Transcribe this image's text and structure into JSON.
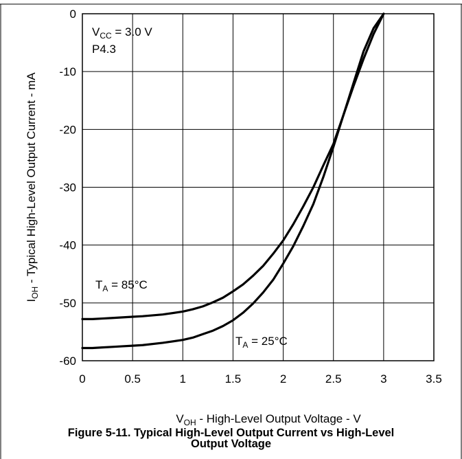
{
  "chart_data": {
    "type": "line",
    "xlabel": "V<sub>OH</sub> - High-Level Output Voltage - V",
    "ylabel": "I<sub>OH</sub> - Typical High-Level Output Current - mA",
    "xlim": [
      0,
      3.5
    ],
    "ylim": [
      -60,
      0
    ],
    "xticks": [
      0,
      0.5,
      1,
      1.5,
      2,
      2.5,
      3,
      3.5
    ],
    "xtick_labels": [
      "0",
      "0.5",
      "1",
      "1.5",
      "2",
      "2.5",
      "3",
      "3.5"
    ],
    "yticks": [
      0,
      -10,
      -20,
      -30,
      -40,
      -50,
      -60
    ],
    "ytick_labels": [
      "0",
      "-10",
      "-20",
      "-30",
      "-40",
      "-50",
      "-60"
    ],
    "grid": true,
    "annotations": [
      {
        "id": "vcc",
        "main": "V",
        "sub": "CC",
        "rest": " = 3.0 V"
      },
      {
        "id": "port",
        "main": "P4.3",
        "sub": "",
        "rest": ""
      },
      {
        "id": "ta85",
        "main": "T",
        "sub": "A",
        "rest": " = 85°C"
      },
      {
        "id": "ta25",
        "main": "T",
        "sub": "A",
        "rest": " = 25°C"
      }
    ],
    "series": [
      {
        "name": "T_A = 85°C",
        "color": "#000000",
        "x": [
          0,
          0.1,
          0.2,
          0.3,
          0.4,
          0.5,
          0.6,
          0.8,
          1.0,
          1.1,
          1.2,
          1.3,
          1.4,
          1.5,
          1.6,
          1.7,
          1.8,
          1.9,
          2.0,
          2.1,
          2.2,
          2.3,
          2.4,
          2.5,
          2.6,
          2.7,
          2.8,
          2.9,
          3.0
        ],
        "y": [
          -52.8,
          -52.8,
          -52.7,
          -52.6,
          -52.5,
          -52.4,
          -52.3,
          -52.0,
          -51.5,
          -51.1,
          -50.6,
          -49.9,
          -49.1,
          -48.0,
          -46.8,
          -45.3,
          -43.6,
          -41.5,
          -39.2,
          -36.4,
          -33.3,
          -30.0,
          -26.2,
          -22.5,
          -17.5,
          -12.5,
          -7.8,
          -3.5,
          0
        ]
      },
      {
        "name": "T_A = 25°C",
        "color": "#000000",
        "x": [
          0,
          0.1,
          0.2,
          0.3,
          0.4,
          0.5,
          0.6,
          0.8,
          1.0,
          1.1,
          1.2,
          1.3,
          1.4,
          1.5,
          1.6,
          1.7,
          1.8,
          1.9,
          2.0,
          2.1,
          2.2,
          2.3,
          2.4,
          2.5,
          2.6,
          2.7,
          2.8,
          2.9,
          3.0
        ],
        "y": [
          -57.8,
          -57.8,
          -57.7,
          -57.6,
          -57.5,
          -57.4,
          -57.3,
          -56.9,
          -56.4,
          -56.0,
          -55.4,
          -54.8,
          -54.0,
          -53.0,
          -51.7,
          -50.1,
          -48.2,
          -46.0,
          -43.2,
          -40.2,
          -36.7,
          -32.9,
          -28.2,
          -23.0,
          -17.5,
          -12.0,
          -6.5,
          -2.5,
          0
        ]
      }
    ]
  },
  "caption": {
    "line1": "Figure 5-11.  Typical High-Level Output Current vs High-Level",
    "line2": "Output Voltage"
  }
}
